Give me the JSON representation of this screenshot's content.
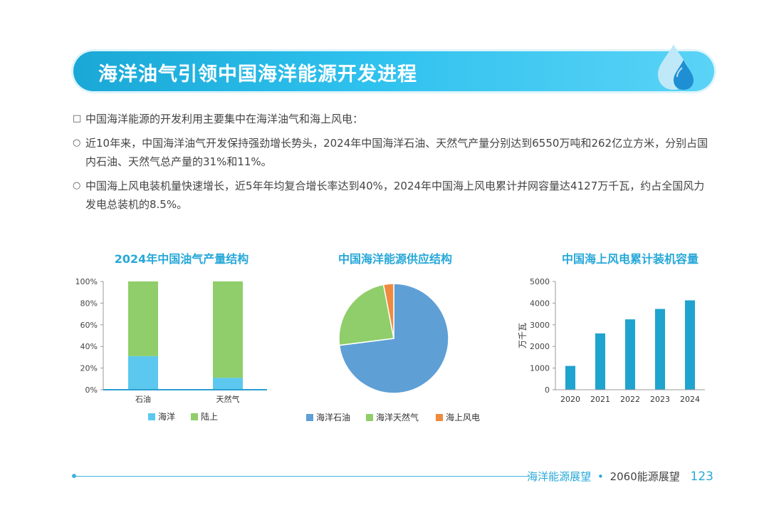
{
  "header": {
    "title": "海洋油气引领中国海洋能源开发进程"
  },
  "bullets": [
    {
      "marker": "□",
      "text": "中国海洋能源的开发利用主要集中在海洋油气和海上风电："
    },
    {
      "marker": "○",
      "text": "近10年来，中国海洋油气开发保持强劲增长势头，2024年中国海洋石油、天然气产量分别达到6550万吨和262亿立方米，分别占国内石油、天然气总产量的31%和11%。"
    },
    {
      "marker": "○",
      "text": "中国海上风电装机量快速增长，近5年年均复合增长率达到40%，2024年中国海上风电累计并网容量达4127万千瓦，约占全国风力发电总装机的8.5%。"
    }
  ],
  "chart_data": [
    {
      "type": "bar",
      "stacked": true,
      "title": "2024年中国油气产量结构",
      "categories": [
        "石油",
        "天然气"
      ],
      "series": [
        {
          "name": "海洋",
          "values": [
            31,
            11
          ],
          "color": "#5cc8f0"
        },
        {
          "name": "陆上",
          "values": [
            69,
            89
          ],
          "color": "#8fce6a"
        }
      ],
      "yticks": [
        "0%",
        "20%",
        "40%",
        "60%",
        "80%",
        "100%"
      ],
      "ylim": [
        0,
        100
      ]
    },
    {
      "type": "pie",
      "title": "中国海洋能源供应结构",
      "slices": [
        {
          "name": "海洋石油",
          "value": 73,
          "color": "#5e9fd6"
        },
        {
          "name": "海洋天然气",
          "value": 24,
          "color": "#8fce6a"
        },
        {
          "name": "海上风电",
          "value": 3,
          "color": "#ef8a3e"
        }
      ]
    },
    {
      "type": "bar",
      "title": "中国海上风电累计装机容量",
      "ylabel": "万千瓦",
      "categories": [
        "2020",
        "2021",
        "2022",
        "2023",
        "2024"
      ],
      "values": [
        1100,
        2600,
        3250,
        3730,
        4127
      ],
      "ylim": [
        0,
        5000
      ],
      "yticks": [
        "0",
        "1000",
        "2000",
        "3000",
        "4000",
        "5000"
      ],
      "color": "#1fa3cf"
    }
  ],
  "footer": {
    "section": "海洋能源展望",
    "separator": "•",
    "book": "2060能源展望",
    "page": "123"
  }
}
